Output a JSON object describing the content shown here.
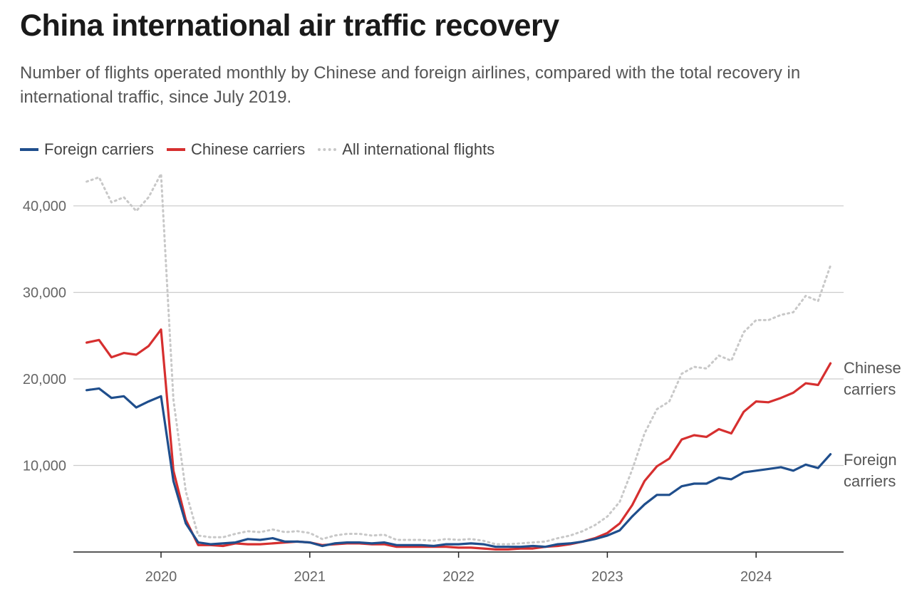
{
  "title": "China international air traffic recovery",
  "subtitle": "Number of flights operated monthly by Chinese and foreign airlines, compared with the total recovery in international traffic, since July 2019.",
  "legend": [
    {
      "label": "Foreign carriers",
      "color": "#1f4e8c",
      "style": "solid"
    },
    {
      "label": "Chinese carriers",
      "color": "#d62f2f",
      "style": "solid"
    },
    {
      "label": "All international flights",
      "color": "#c8c8c8",
      "style": "dotted"
    }
  ],
  "end_labels": {
    "chinese": [
      "Chinese",
      "carriers"
    ],
    "foreign": [
      "Foreign",
      "carriers"
    ]
  },
  "chart_data": {
    "type": "line",
    "x_start": "2019-07",
    "x_end": "2024-07",
    "frequency": "monthly",
    "x_ticks": [
      "2020",
      "2021",
      "2022",
      "2023",
      "2024"
    ],
    "y_ticks": [
      10000,
      20000,
      30000,
      40000
    ],
    "y_tick_labels": [
      "10,000",
      "20,000",
      "30,000",
      "40,000"
    ],
    "ylim": [
      0,
      44000
    ],
    "grid": "horizontal",
    "legend_position": "top-left",
    "series": [
      {
        "name": "Foreign carriers",
        "color": "#1f4e8c",
        "values": [
          18700,
          18900,
          17800,
          18000,
          16700,
          17400,
          18000,
          8200,
          3300,
          1100,
          900,
          1000,
          1100,
          1500,
          1400,
          1600,
          1200,
          1200,
          1100,
          700,
          1000,
          1100,
          1100,
          1000,
          1100,
          800,
          800,
          800,
          700,
          900,
          900,
          1000,
          900,
          600,
          600,
          600,
          700,
          600,
          900,
          1000,
          1200,
          1500,
          1900,
          2500,
          4100,
          5500,
          6600,
          6600,
          7600,
          7900,
          7900,
          8600,
          8400,
          9200,
          9400,
          9600,
          9800,
          9400,
          10100,
          9700,
          11300
        ]
      },
      {
        "name": "Chinese carriers",
        "color": "#d62f2f",
        "values": [
          24200,
          24500,
          22500,
          23000,
          22800,
          23800,
          25700,
          9400,
          3700,
          800,
          800,
          700,
          1000,
          900,
          900,
          1000,
          1100,
          1200,
          1100,
          800,
          900,
          1000,
          1000,
          900,
          900,
          600,
          600,
          600,
          600,
          600,
          500,
          500,
          400,
          300,
          300,
          400,
          400,
          600,
          700,
          900,
          1200,
          1600,
          2200,
          3300,
          5400,
          8200,
          9900,
          10800,
          13000,
          13500,
          13300,
          14200,
          13700,
          16200,
          17400,
          17300,
          17800,
          18400,
          19500,
          19300,
          21800
        ]
      },
      {
        "name": "All international flights",
        "color": "#c8c8c8",
        "values": [
          42800,
          43300,
          40400,
          41000,
          39400,
          41000,
          43700,
          17600,
          7000,
          1900,
          1700,
          1700,
          2100,
          2400,
          2300,
          2600,
          2300,
          2400,
          2200,
          1500,
          1900,
          2100,
          2100,
          1900,
          2000,
          1400,
          1400,
          1400,
          1300,
          1500,
          1400,
          1500,
          1300,
          900,
          900,
          1000,
          1100,
          1200,
          1600,
          1900,
          2400,
          3100,
          4100,
          5800,
          9500,
          13700,
          16500,
          17400,
          20600,
          21400,
          21200,
          22700,
          22100,
          25400,
          26800,
          26800,
          27400,
          27700,
          29600,
          29000,
          33100
        ]
      }
    ]
  }
}
